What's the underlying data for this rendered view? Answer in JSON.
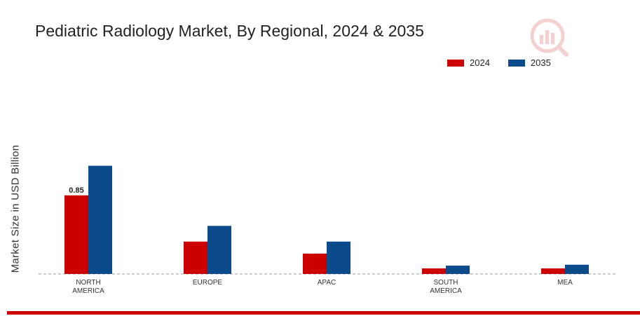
{
  "chart_data": {
    "type": "bar",
    "title": "Pediatric Radiology Market, By Regional, 2024 & 2035",
    "xlabel": "",
    "ylabel": "Market Size in USD Billion",
    "categories": [
      "NORTH AMERICA",
      "EUROPE",
      "APAC",
      "SOUTH AMERICA",
      "MEA"
    ],
    "category_lines": [
      [
        "NORTH",
        "AMERICA"
      ],
      [
        "EUROPE"
      ],
      [
        "APAC"
      ],
      [
        "SOUTH",
        "AMERICA"
      ],
      [
        "MEA"
      ]
    ],
    "series": [
      {
        "name": "2024",
        "color": "#cc0000",
        "values": [
          0.85,
          0.35,
          0.22,
          0.06,
          0.06
        ]
      },
      {
        "name": "2035",
        "color": "#0b4a8b",
        "values": [
          1.17,
          0.52,
          0.35,
          0.09,
          0.1
        ]
      }
    ],
    "data_labels": [
      {
        "series": 0,
        "index": 0,
        "text": "0.85"
      }
    ],
    "ylim": [
      0,
      2.1
    ],
    "grid": false,
    "baseline": "dashed",
    "legend_position": "top-right"
  },
  "logo": {
    "icon": "analytics-logo-icon",
    "color": "#cc0000"
  },
  "accent_color": "#cc0000"
}
